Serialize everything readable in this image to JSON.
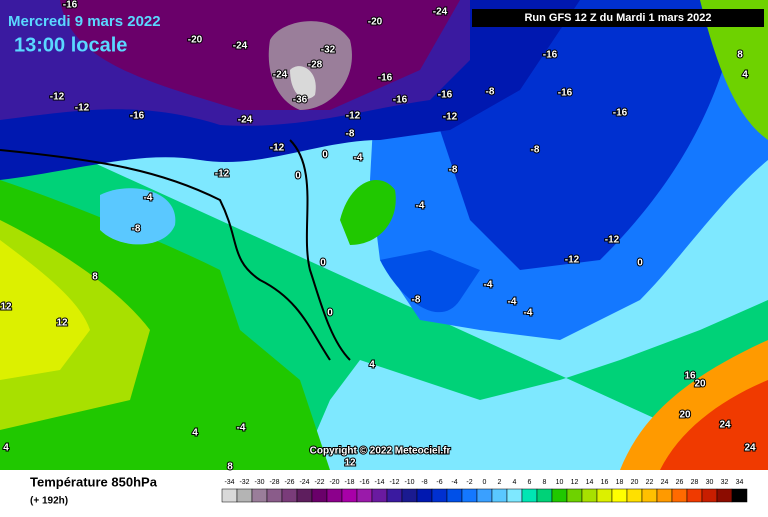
{
  "header": {
    "date": "Mercredi 9 mars 2022",
    "time": "13:00 locale",
    "run": "Run GFS 12 Z du Mardi 1 mars 2022",
    "copyright": "Copyright © 2022 Meteociel.fr"
  },
  "footer": {
    "title": "Température 850hPa",
    "lead": "(+ 192h)"
  },
  "legend": {
    "levels": [
      -34,
      -32,
      -30,
      -28,
      -26,
      -24,
      -22,
      -20,
      -18,
      -16,
      -14,
      -12,
      -10,
      -8,
      -6,
      -4,
      -2,
      0,
      2,
      4,
      6,
      8,
      10,
      12,
      14,
      16,
      18,
      20,
      22,
      24,
      26,
      28,
      30,
      32,
      34
    ],
    "colors": [
      "#d9d9d9",
      "#b4b4b4",
      "#9a7e9a",
      "#8a5c8a",
      "#7a3c7a",
      "#5e1e5e",
      "#6a006a",
      "#8c008c",
      "#a800a8",
      "#9a1aaa",
      "#6a1aa0",
      "#3a1aa0",
      "#1a1a90",
      "#0018b0",
      "#0030d0",
      "#0050e8",
      "#1478ff",
      "#3aa0ff",
      "#5ac8ff",
      "#7ee8ff",
      "#00e6b4",
      "#00d278",
      "#20c800",
      "#6ed200",
      "#a8e000",
      "#dcf000",
      "#ffff00",
      "#ffe000",
      "#ffc000",
      "#ff9a00",
      "#ff6a00",
      "#f03a00",
      "#c81e00",
      "#8c0c00",
      "#000000"
    ]
  },
  "contour_labels": [
    "-16",
    "-20",
    "-24",
    "-20",
    "-24",
    "-32",
    "-28",
    "-24",
    "-36",
    "-16",
    "-16",
    "-16",
    "-8",
    "-16",
    "-16",
    "-16",
    "-12",
    "-12",
    "-16",
    "-24",
    "-12",
    "-12",
    "-8",
    "-12",
    "-8",
    "0",
    "-4",
    "-12",
    "0",
    "-4",
    "-8",
    "-4",
    "-8",
    "-12",
    "-12",
    "0",
    "-8",
    "-4",
    "-4",
    "0",
    "0",
    "-4",
    "12",
    "12",
    "8",
    "4",
    "4",
    "-4",
    "16",
    "20",
    "20",
    "24",
    "24",
    "12",
    "8",
    "4",
    "8",
    "4"
  ]
}
